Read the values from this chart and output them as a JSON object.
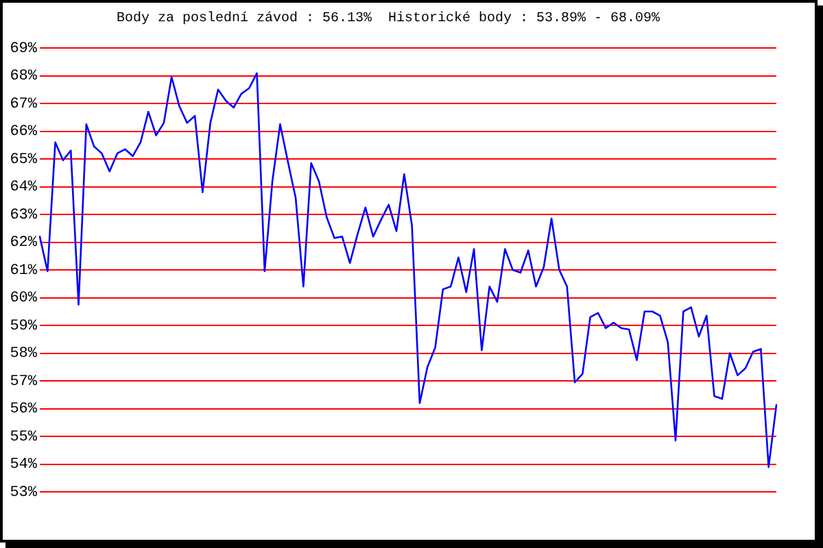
{
  "chart_data": {
    "type": "line",
    "title": "Body za poslední závod : 56.13%  Historické body : 53.89% - 68.09%",
    "categories": [
      null,
      null,
      null,
      null,
      null,
      null,
      null,
      null,
      null,
      null,
      null,
      null,
      null,
      null,
      null,
      null,
      null,
      null,
      null,
      null,
      null,
      null,
      null,
      null,
      null,
      null,
      null,
      null,
      null,
      null,
      null,
      null,
      null,
      null,
      null,
      null,
      null,
      null,
      null,
      null,
      null,
      null,
      null,
      null,
      null,
      null,
      null,
      null,
      null,
      null,
      null,
      null,
      null,
      null,
      null,
      null,
      null,
      null,
      null,
      null,
      null,
      null,
      null,
      null,
      null,
      null,
      null,
      null,
      null,
      null,
      null,
      null,
      null,
      null,
      null,
      null,
      null,
      null,
      null,
      null,
      null,
      null,
      null,
      null,
      null,
      null,
      null,
      null,
      null,
      null,
      null,
      null,
      null,
      null,
      null,
      null
    ],
    "values": [
      62.2,
      60.95,
      65.6,
      64.95,
      65.3,
      59.75,
      66.25,
      65.45,
      65.2,
      64.55,
      65.2,
      65.35,
      65.1,
      65.6,
      66.7,
      65.85,
      66.3,
      67.95,
      66.9,
      66.3,
      66.55,
      63.8,
      66.3,
      67.5,
      67.1,
      66.85,
      67.35,
      67.55,
      68.09,
      60.95,
      64.2,
      66.25,
      64.9,
      63.6,
      60.4,
      64.85,
      64.2,
      62.9,
      62.15,
      62.2,
      61.25,
      62.3,
      63.25,
      62.2,
      62.8,
      63.35,
      62.4,
      64.45,
      62.6,
      56.2,
      57.5,
      58.2,
      60.3,
      60.4,
      61.45,
      60.2,
      61.75,
      58.1,
      60.4,
      59.85,
      61.75,
      61.0,
      60.9,
      61.7,
      60.4,
      61.1,
      62.85,
      61.0,
      60.4,
      56.95,
      57.25,
      59.3,
      59.45,
      58.9,
      59.1,
      58.9,
      58.85,
      57.75,
      59.5,
      59.5,
      59.35,
      58.4,
      54.85,
      59.5,
      59.65,
      58.6,
      59.35,
      56.45,
      56.35,
      58.0,
      57.2,
      57.45,
      58.05,
      58.15,
      53.89,
      56.13
    ],
    "color": "#0000ff",
    "ylim": [
      53,
      69
    ],
    "yticks": [
      {
        "value": 53,
        "label": "53%"
      },
      {
        "value": 54,
        "label": "54%"
      },
      {
        "value": 55,
        "label": "55%"
      },
      {
        "value": 56,
        "label": "56%"
      },
      {
        "value": 57,
        "label": "57%"
      },
      {
        "value": 58,
        "label": "58%"
      },
      {
        "value": 59,
        "label": "59%"
      },
      {
        "value": 60,
        "label": "60%"
      },
      {
        "value": 61,
        "label": "61%"
      },
      {
        "value": 62,
        "label": "62%"
      },
      {
        "value": 63,
        "label": "63%"
      },
      {
        "value": 64,
        "label": "64%"
      },
      {
        "value": 65,
        "label": "65%"
      },
      {
        "value": 66,
        "label": "66%"
      },
      {
        "value": 67,
        "label": "67%"
      },
      {
        "value": 68,
        "label": "68%"
      },
      {
        "value": 69,
        "label": "69%"
      }
    ],
    "grid": "y",
    "tick_labels": "y",
    "marker": "none",
    "line_style": "solid"
  }
}
